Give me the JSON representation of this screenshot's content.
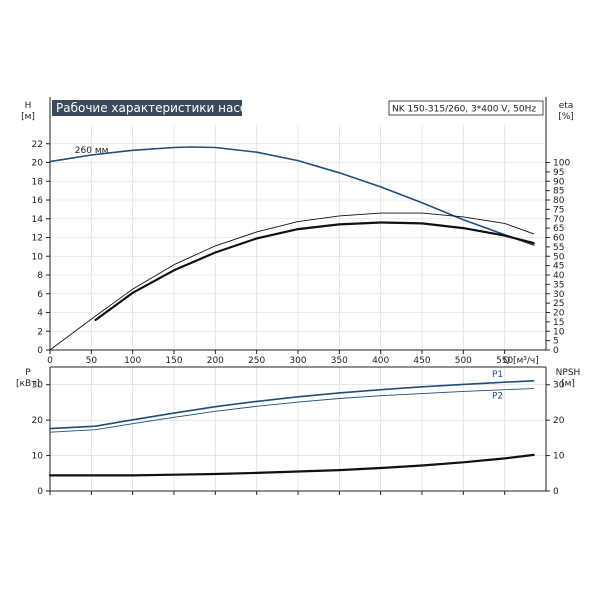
{
  "header": {
    "title": "Рабочие характеристики насоса",
    "model": "NK 150-315/260, 3*400 V, 50Hz"
  },
  "colors": {
    "blue": "#1f4e7a",
    "black": "#111111",
    "title_bg": "#3a4a5c",
    "grid": "#d9d9d9"
  },
  "chart_data": [
    {
      "type": "line",
      "name": "head-efficiency",
      "title": "Рабочие характеристики насоса",
      "xlabel": "Q [м³/ч]",
      "ylabel_left": "H",
      "ylabel_left_unit": "[м]",
      "ylabel_right": "eta",
      "ylabel_right_unit": "[%]",
      "xlim": [
        0,
        600
      ],
      "ylim_left": [
        0,
        24
      ],
      "ylim_right": [
        0,
        120
      ],
      "x_ticks": [
        0,
        50,
        100,
        150,
        200,
        250,
        300,
        350,
        400,
        450,
        500,
        550
      ],
      "y_ticks_left": [
        0,
        2,
        4,
        6,
        8,
        10,
        12,
        14,
        16,
        18,
        20,
        22
      ],
      "y_ticks_right": [
        0,
        5,
        10,
        15,
        20,
        25,
        30,
        35,
        40,
        45,
        50,
        55,
        60,
        65,
        70,
        75,
        80,
        85,
        90,
        95,
        100
      ],
      "y_tick_labels_right": [
        "0",
        "5",
        "10",
        "15",
        "20",
        "25",
        "30",
        "35",
        "40",
        "45",
        "50",
        "55",
        "60",
        "65",
        "70",
        "75",
        "80",
        "85",
        "90",
        "95",
        "100"
      ],
      "grid": true,
      "series": [
        {
          "name": "260 мм",
          "axis": "left",
          "color": "#1f4e7a",
          "width": 1.6,
          "x": [
            0,
            50,
            100,
            150,
            170,
            200,
            250,
            300,
            350,
            400,
            450,
            500,
            550,
            585
          ],
          "y": [
            20.1,
            20.8,
            21.3,
            21.6,
            21.65,
            21.6,
            21.1,
            20.2,
            18.9,
            17.4,
            15.7,
            13.9,
            12.3,
            11.2
          ]
        },
        {
          "name": "",
          "axis": "right",
          "color": "#111111",
          "width": 0.9,
          "x": [
            0,
            50,
            100,
            150,
            200,
            250,
            300,
            350,
            400,
            450,
            500,
            550,
            585
          ],
          "y": [
            0,
            16.5,
            32.5,
            45.5,
            55.5,
            63,
            68.5,
            71.5,
            73,
            73,
            71,
            67.5,
            62
          ]
        },
        {
          "name": "",
          "axis": "right",
          "color": "#111111",
          "width": 2.2,
          "x": [
            55,
            100,
            150,
            200,
            250,
            300,
            350,
            400,
            450,
            500,
            550,
            585
          ],
          "y": [
            16,
            30.5,
            42.5,
            52,
            59.5,
            64.5,
            67,
            68,
            67.5,
            65,
            61,
            57
          ]
        }
      ]
    },
    {
      "type": "line",
      "name": "power-npsh",
      "ylabel_left": "P",
      "ylabel_left_unit": "[кВт]",
      "ylabel_right": "NPSH",
      "ylabel_right_unit": "[м]",
      "xlim": [
        0,
        600
      ],
      "ylim_left": [
        0,
        35
      ],
      "ylim_right": [
        0,
        35
      ],
      "y_ticks_left": [
        0,
        10,
        20,
        30
      ],
      "y_ticks_right": [
        0,
        10,
        20,
        30
      ],
      "grid": true,
      "series": [
        {
          "name": "P1",
          "axis": "left",
          "color": "#1f4e7a",
          "width": 1.6,
          "x": [
            0,
            55,
            100,
            150,
            200,
            250,
            300,
            350,
            400,
            450,
            500,
            550,
            585
          ],
          "y": [
            17.6,
            18.3,
            20.1,
            22.0,
            23.8,
            25.3,
            26.6,
            27.7,
            28.6,
            29.4,
            30.1,
            30.7,
            31.1
          ]
        },
        {
          "name": "P2",
          "axis": "left",
          "color": "#1f4e7a",
          "width": 0.9,
          "x": [
            0,
            55,
            100,
            150,
            200,
            250,
            300,
            350,
            400,
            450,
            500,
            550,
            585
          ],
          "y": [
            16.6,
            17.3,
            19.0,
            20.8,
            22.5,
            23.9,
            25.1,
            26.1,
            26.9,
            27.5,
            28.1,
            28.6,
            28.9
          ]
        },
        {
          "name": "",
          "axis": "right",
          "color": "#111111",
          "width": 2.2,
          "x": [
            0,
            55,
            100,
            150,
            200,
            250,
            300,
            350,
            400,
            450,
            500,
            550,
            585
          ],
          "y": [
            4.4,
            4.4,
            4.4,
            4.6,
            4.8,
            5.1,
            5.5,
            5.9,
            6.5,
            7.2,
            8.1,
            9.2,
            10.2
          ]
        }
      ]
    }
  ]
}
